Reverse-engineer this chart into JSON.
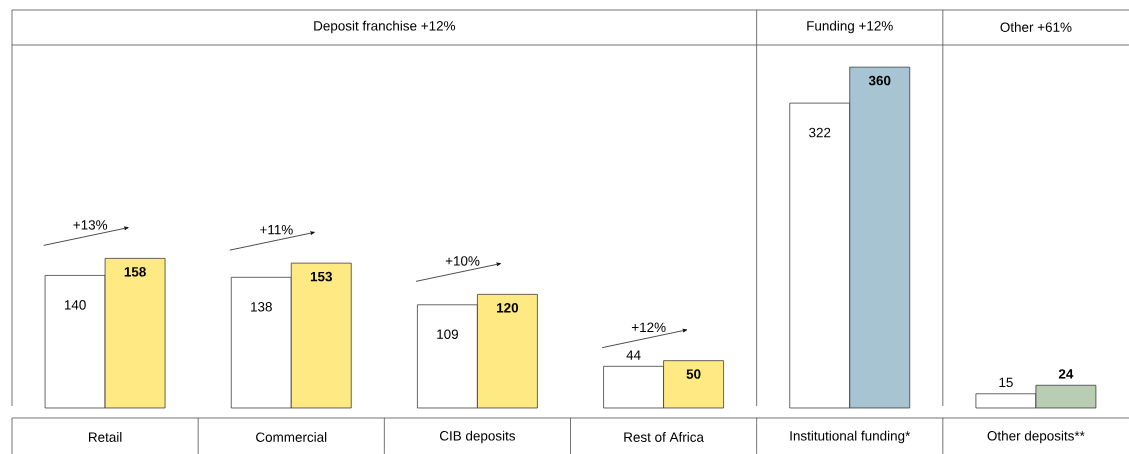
{
  "chart_data": {
    "type": "bar",
    "categories": [
      "Retail",
      "Commercial",
      "CIB deposits",
      "Rest of Africa",
      "Institutional funding*",
      "Other deposits**"
    ],
    "series": [
      {
        "color": "#ffffff",
        "values": [
          140,
          138,
          109,
          44,
          322,
          15
        ]
      },
      {
        "colors": [
          "#fee983",
          "#fee983",
          "#fee983",
          "#fee983",
          "#a6c4d2",
          "#b8cdb2"
        ],
        "values": [
          158,
          153,
          120,
          50,
          360,
          24
        ]
      }
    ],
    "data_labels": true,
    "annotations": [
      "Deposit franchise +12%",
      "Funding +12%",
      "Other +61%",
      "+13%",
      "+11%",
      "+10%",
      "+12%"
    ]
  }
}
